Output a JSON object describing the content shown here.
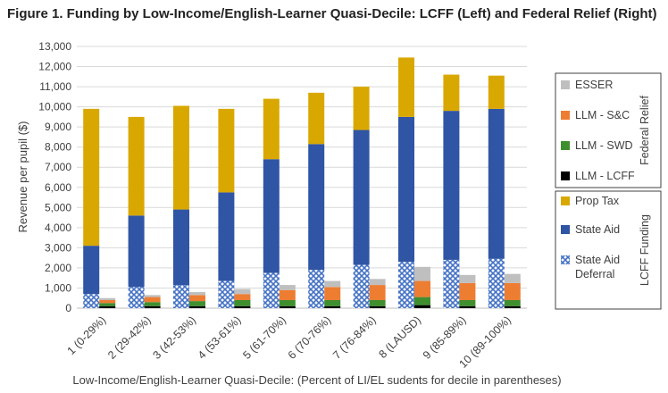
{
  "chart_data": {
    "type": "bar",
    "stacked": true,
    "title": "Figure 1. Funding by Low-Income/English-Learner Quasi-Decile: LCFF (Left) and Federal Relief (Right)",
    "xlabel": "Low-Income/English-Learner Quasi-Decile:  (Percent of LI/EL sudents for decile in parentheses)",
    "ylabel": "Revenue per pupil ($)",
    "ylim": [
      0,
      13000
    ],
    "ytick_step": 1000,
    "yticks": [
      "0",
      "1,000",
      "2,000",
      "3,000",
      "4,000",
      "5,000",
      "6,000",
      "7,000",
      "8,000",
      "9,000",
      "10,000",
      "11,000",
      "12,000",
      "13,000"
    ],
    "grid": true,
    "legend_position": "right",
    "categories": [
      "1 (0-29%)",
      "2 (29-42%)",
      "3 (42-53%)",
      "4 (53-61%)",
      "5 (61-70%)",
      "6 (70-76%)",
      "7 (76-84%)",
      "8 (LAUSD)",
      "9 (85-89%)",
      "10 (89-100%)"
    ],
    "lcff_series": [
      {
        "name": "State Aid Deferral",
        "color": "#4472c4",
        "pattern": "crosshatch",
        "values": [
          700,
          1050,
          1150,
          1350,
          1750,
          1900,
          2150,
          2300,
          2400,
          2450
        ]
      },
      {
        "name": "State Aid",
        "color": "#2f55a4",
        "values": [
          2400,
          3550,
          3750,
          4400,
          5650,
          6250,
          6700,
          7200,
          7400,
          7450
        ]
      },
      {
        "name": "Prop Tax",
        "color": "#d9a800",
        "values": [
          6800,
          4900,
          5150,
          4150,
          3000,
          2550,
          2150,
          2950,
          1800,
          1650
        ]
      }
    ],
    "federal_series": [
      {
        "name": "LLM - LCFF",
        "color": "#000000",
        "values": [
          100,
          100,
          100,
          100,
          100,
          100,
          100,
          150,
          100,
          100
        ]
      },
      {
        "name": "LLM - SWD",
        "color": "#3f8f2f",
        "values": [
          150,
          200,
          250,
          300,
          300,
          300,
          300,
          400,
          300,
          300
        ]
      },
      {
        "name": "LLM - S&C",
        "color": "#ed7d31",
        "values": [
          150,
          250,
          300,
          300,
          500,
          650,
          750,
          800,
          850,
          850
        ]
      },
      {
        "name": "ESSER",
        "color": "#bfbfbf",
        "values": [
          100,
          100,
          150,
          250,
          250,
          300,
          300,
          700,
          400,
          450
        ]
      }
    ],
    "legend": {
      "federal_group_label": "Federal Relief",
      "lcff_group_label": "LCFF Funding",
      "federal_items": [
        "ESSER",
        "LLM - S&C",
        "LLM - SWD",
        "LLM - LCFF"
      ],
      "lcff_items": [
        "Prop Tax",
        "State Aid",
        "State Aid Deferral"
      ]
    }
  }
}
